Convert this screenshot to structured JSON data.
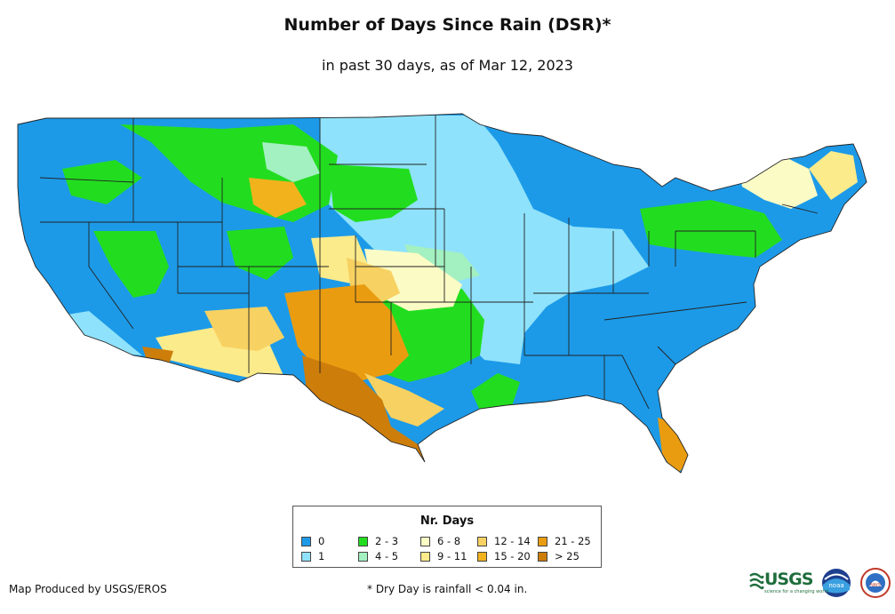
{
  "title": "Number of Days Since Rain (DSR)*",
  "subtitle": "in past 30 days, as of Mar 12, 2023",
  "legend": {
    "title": "Nr. Days",
    "items": [
      {
        "label": "0",
        "color": "#1c9ae8"
      },
      {
        "label": "1",
        "color": "#8fe2fb"
      },
      {
        "label": "2 - 3",
        "color": "#22dd1f"
      },
      {
        "label": "4 - 5",
        "color": "#a3f0c0"
      },
      {
        "label": "6 - 8",
        "color": "#fbfbc5"
      },
      {
        "label": "9 - 11",
        "color": "#fbeb8a"
      },
      {
        "label": "12 - 14",
        "color": "#f7d162"
      },
      {
        "label": "15 - 20",
        "color": "#f2b21c"
      },
      {
        "label": "21 - 25",
        "color": "#ea9c10"
      },
      {
        "label": "> 25",
        "color": "#cc7d0a"
      }
    ]
  },
  "footer": {
    "producer": "Map Produced by USGS/EROS",
    "note": "* Dry Day is rainfall < 0.04 in."
  },
  "logos": {
    "usgs": "USGS",
    "usgs_tagline": "science for a changing world",
    "noaa": "noaa",
    "nws": "NWS"
  }
}
